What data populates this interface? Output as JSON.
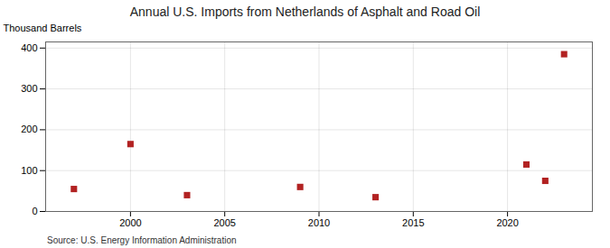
{
  "chart_data": {
    "type": "scatter",
    "title": "Annual U.S. Imports from Netherlands of Asphalt and Road Oil",
    "ylabel": "Thousand Barrels",
    "source": "Source: U.S. Energy Information Administration",
    "x": [
      1997,
      2000,
      2003,
      2009,
      2013,
      2021,
      2022,
      2023
    ],
    "values": [
      55,
      165,
      40,
      60,
      35,
      115,
      75,
      385
    ],
    "xlim": [
      1995.5,
      2024.5
    ],
    "ylim": [
      0,
      415
    ],
    "xticks": [
      2000,
      2005,
      2010,
      2015,
      2020
    ],
    "yticks": [
      0,
      100,
      200,
      300,
      400
    ],
    "color": "#b22222",
    "marker": "square",
    "grid": true
  }
}
